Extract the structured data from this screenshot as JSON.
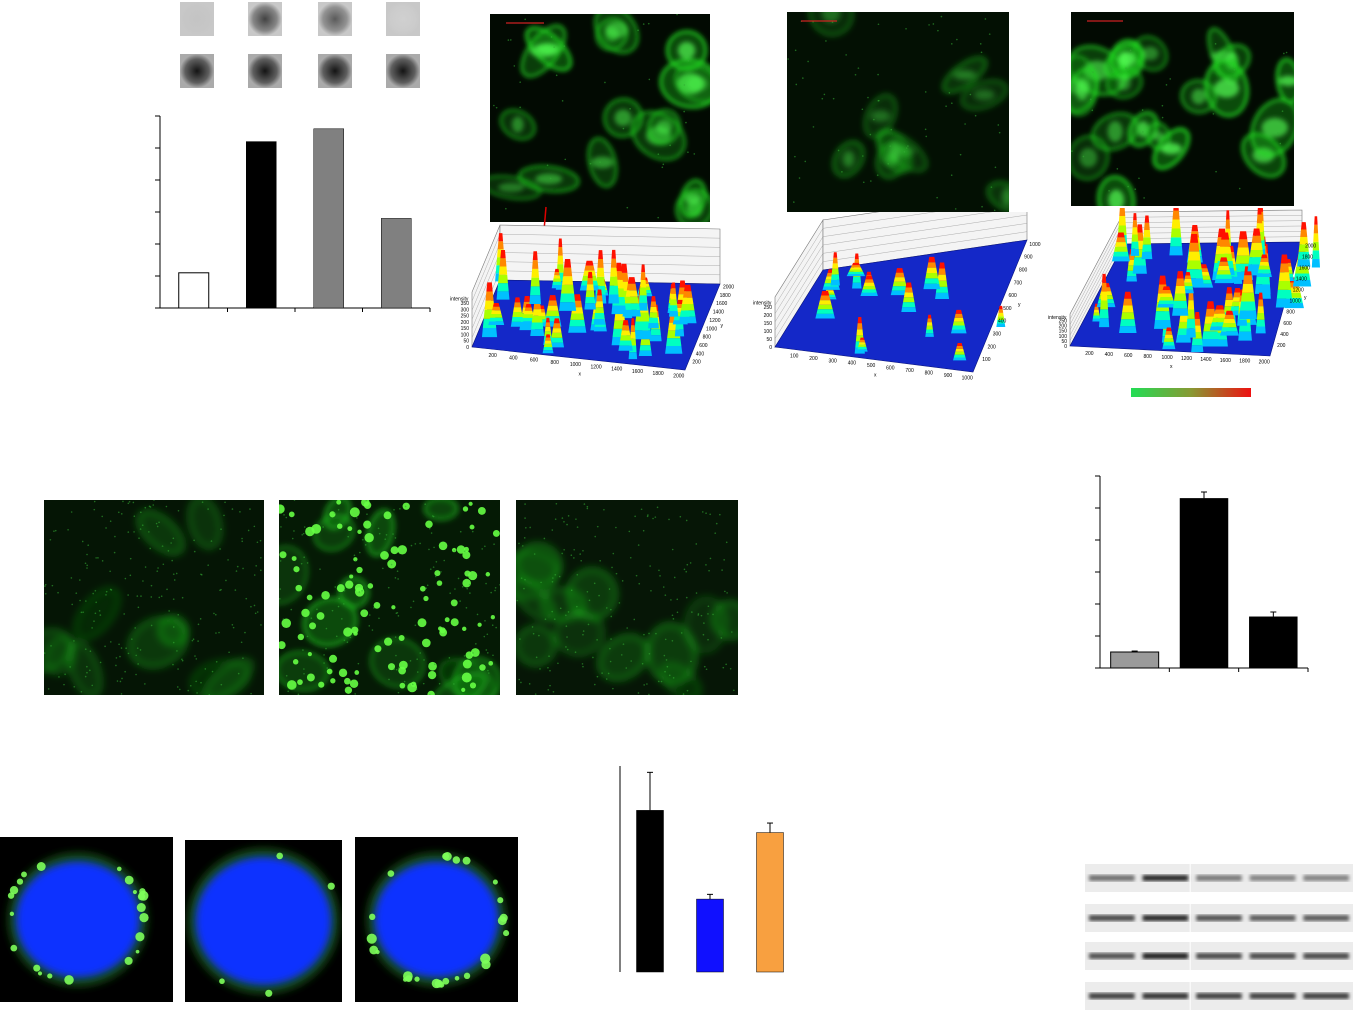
{
  "dot_blot": {
    "top_row_intensity": [
      0.25,
      0.8,
      0.7,
      0.2
    ],
    "bottom_row_intensity": [
      1.0,
      1.0,
      1.0,
      1.0
    ]
  },
  "colors": {
    "fluorescence": "#22dd22",
    "nucleus": "#1133ff",
    "bar_black": "#000000",
    "bar_gray": "#808080",
    "bar_blue": "#1010ff",
    "bar_orange": "#f8a040",
    "colorbar_start": "#22dd55",
    "colorbar_end": "#ee1111"
  },
  "chart_data": [
    {
      "type": "bar",
      "categories": [
        "",
        "",
        "",
        ""
      ],
      "values": [
        1.1,
        5.2,
        5.6,
        2.8
      ],
      "bar_colors": [
        "#ffffff",
        "#000000",
        "#808080",
        "#808080"
      ],
      "ylim": [
        0,
        6
      ]
    },
    {
      "type": "bar",
      "categories": [
        "",
        "",
        ""
      ],
      "values": [
        0.5,
        5.3,
        1.6
      ],
      "errors": [
        0.03,
        0.2,
        0.15
      ],
      "bar_colors": [
        "#9a9a9a",
        "#000000",
        "#000000"
      ],
      "ylim": [
        0,
        6
      ]
    },
    {
      "type": "bar",
      "categories": [
        "",
        "",
        ""
      ],
      "values": [
        5.1,
        2.3,
        4.4
      ],
      "errors": [
        1.2,
        0.15,
        0.3
      ],
      "bar_colors": [
        "#000000",
        "#1010ff",
        "#f8a040"
      ],
      "ylim": [
        0,
        6.5
      ]
    },
    {
      "type": "surface",
      "title": "",
      "zlabel": "intensity",
      "xlabel": "x",
      "ylabel": "y",
      "x_ticks": [
        "200",
        "400",
        "600",
        "800",
        "1000",
        "1200",
        "1400",
        "1600",
        "1800",
        "2000"
      ],
      "y_ticks": [
        "200",
        "400",
        "600",
        "800",
        "1000",
        "1200",
        "1400",
        "1600",
        "1800",
        "2000"
      ],
      "z_ticks": [
        "0",
        "50",
        "100",
        "150",
        "200",
        "250",
        "300",
        "350"
      ]
    },
    {
      "type": "surface",
      "zlabel": "intensity",
      "xlabel": "x",
      "ylabel": "y",
      "x_ticks": [
        "100",
        "200",
        "300",
        "400",
        "500",
        "600",
        "700",
        "800",
        "900",
        "1000"
      ],
      "y_ticks": [
        "100",
        "200",
        "300",
        "400",
        "500",
        "600",
        "700",
        "800",
        "900",
        "1000"
      ],
      "z_ticks": [
        "0",
        "50",
        "100",
        "150",
        "200",
        "250"
      ]
    },
    {
      "type": "surface",
      "zlabel": "intensity",
      "xlabel": "x",
      "ylabel": "y",
      "x_ticks": [
        "200",
        "400",
        "600",
        "800",
        "1000",
        "1200",
        "1400",
        "1600",
        "1800",
        "2000"
      ],
      "y_ticks": [
        "200",
        "400",
        "600",
        "800",
        "1000",
        "1200",
        "1400",
        "1600",
        "1800",
        "2000"
      ],
      "z_ticks": [
        "0",
        "50",
        "100",
        "150",
        "200",
        "250"
      ]
    }
  ],
  "western_blot": {
    "rows": 4,
    "lanes": 5,
    "band_intensity": [
      [
        0.55,
        0.9,
        0.5,
        0.45,
        0.45
      ],
      [
        0.75,
        0.9,
        0.7,
        0.65,
        0.65
      ],
      [
        0.7,
        0.95,
        0.75,
        0.75,
        0.75
      ],
      [
        0.8,
        0.85,
        0.8,
        0.8,
        0.8
      ]
    ]
  }
}
